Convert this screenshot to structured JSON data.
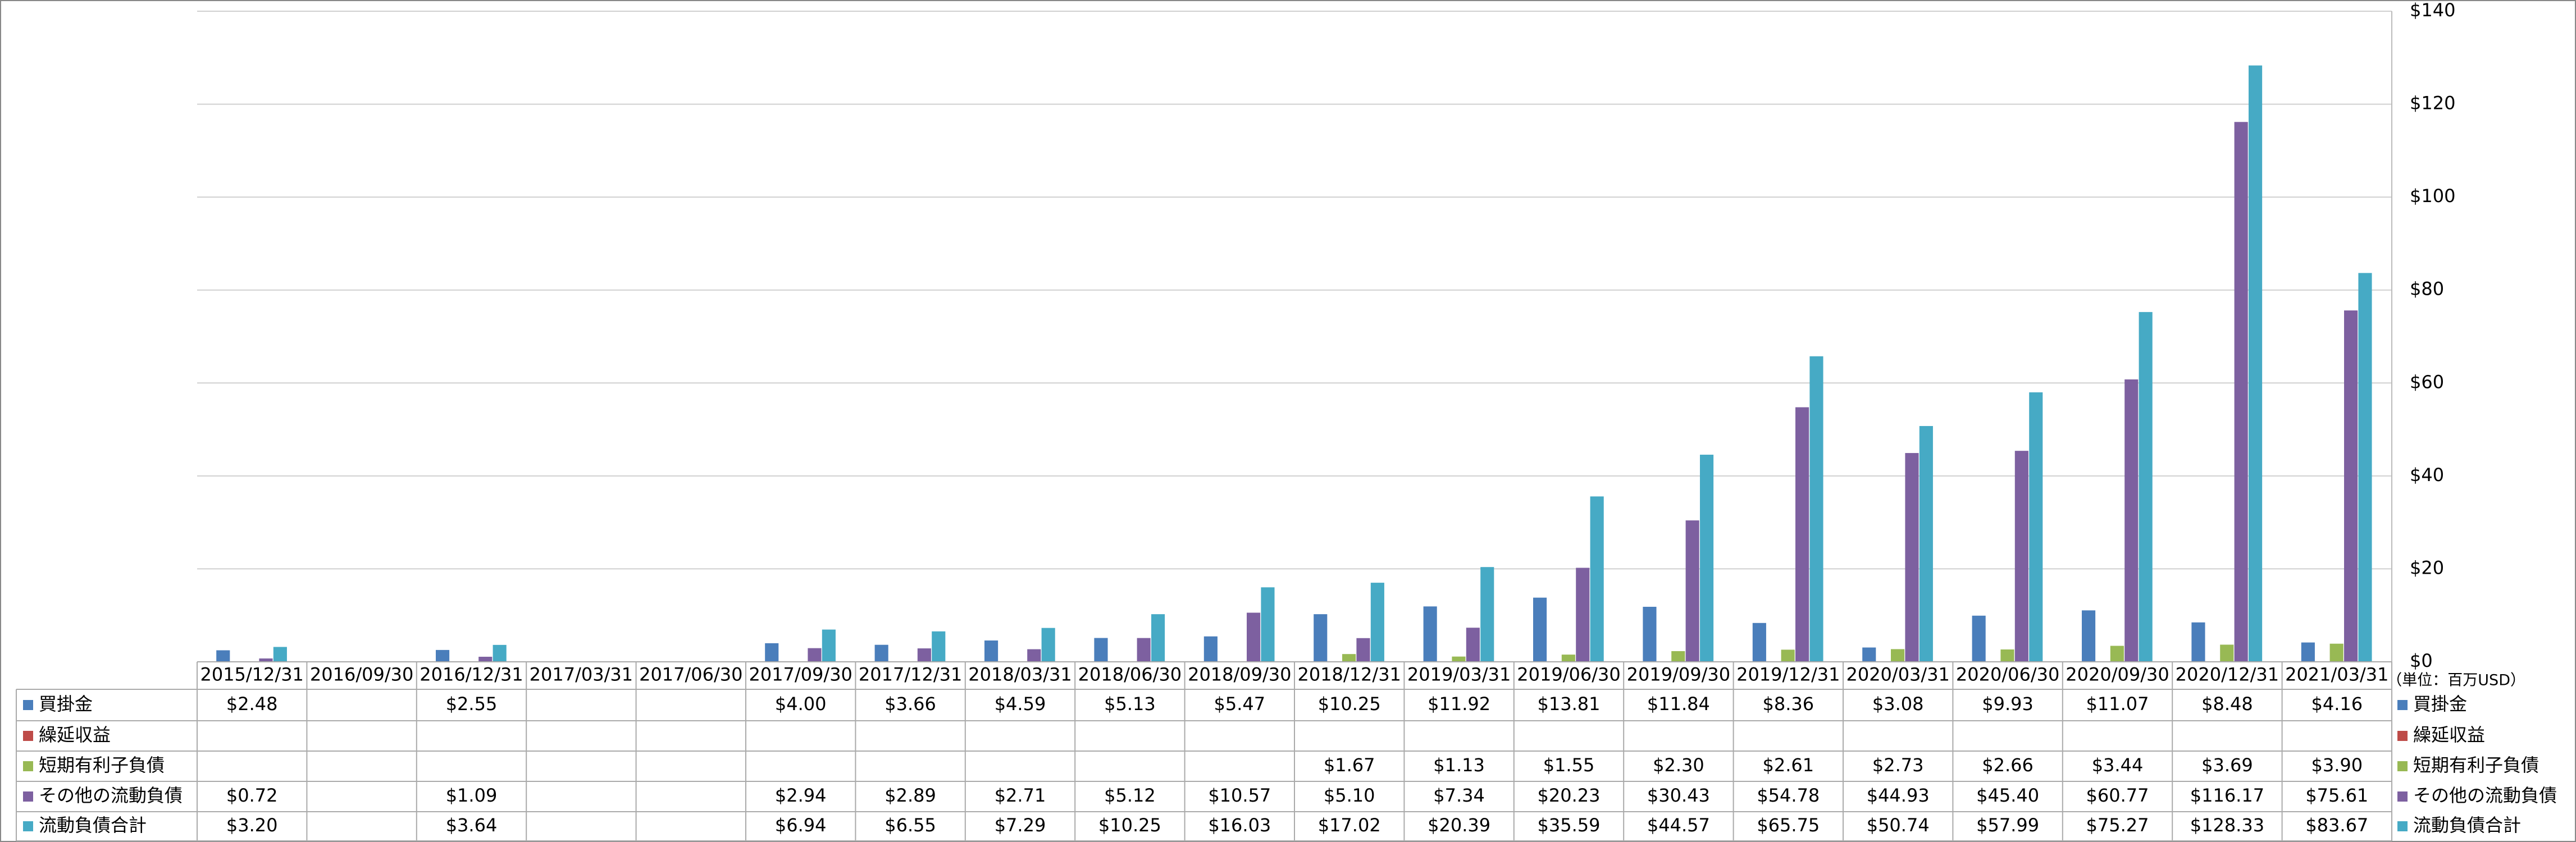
{
  "chart_data": {
    "type": "bar",
    "categories": [
      "2015/12/31",
      "2016/09/30",
      "2016/12/31",
      "2017/03/31",
      "2017/06/30",
      "2017/09/30",
      "2017/12/31",
      "2018/03/31",
      "2018/06/30",
      "2018/09/30",
      "2018/12/31",
      "2019/03/31",
      "2019/06/30",
      "2019/09/30",
      "2019/12/31",
      "2020/03/31",
      "2020/06/30",
      "2020/09/30",
      "2020/12/31",
      "2021/03/31"
    ],
    "series": [
      {
        "name": "買掛金",
        "color": "#4a7ebb",
        "values": [
          2.48,
          null,
          2.55,
          null,
          null,
          4.0,
          3.66,
          4.59,
          5.13,
          5.47,
          10.25,
          11.92,
          13.81,
          11.84,
          8.36,
          3.08,
          9.93,
          11.07,
          8.48,
          4.16
        ],
        "value_labels": [
          "$2.48",
          null,
          "$2.55",
          null,
          null,
          "$4.00",
          "$3.66",
          "$4.59",
          "$5.13",
          "$5.47",
          "$10.25",
          "$11.92",
          "$13.81",
          "$11.84",
          "$8.36",
          "$3.08",
          "$9.93",
          "$11.07",
          "$8.48",
          "$4.16"
        ]
      },
      {
        "name": "繰延収益",
        "color": "#be4b48",
        "values": [
          null,
          null,
          null,
          null,
          null,
          null,
          null,
          null,
          null,
          null,
          null,
          null,
          null,
          null,
          null,
          null,
          null,
          null,
          null,
          null
        ],
        "value_labels": [
          null,
          null,
          null,
          null,
          null,
          null,
          null,
          null,
          null,
          null,
          null,
          null,
          null,
          null,
          null,
          null,
          null,
          null,
          null,
          null
        ]
      },
      {
        "name": "短期有利子負債",
        "color": "#98b954",
        "values": [
          null,
          null,
          null,
          null,
          null,
          null,
          null,
          null,
          null,
          null,
          1.67,
          1.13,
          1.55,
          2.3,
          2.61,
          2.73,
          2.66,
          3.44,
          3.69,
          3.9
        ],
        "value_labels": [
          null,
          null,
          null,
          null,
          null,
          null,
          null,
          null,
          null,
          null,
          "$1.67",
          "$1.13",
          "$1.55",
          "$2.30",
          "$2.61",
          "$2.73",
          "$2.66",
          "$3.44",
          "$3.69",
          "$3.90"
        ]
      },
      {
        "name": "その他の流動負債",
        "color": "#7d60a0",
        "values": [
          0.72,
          null,
          1.09,
          null,
          null,
          2.94,
          2.89,
          2.71,
          5.12,
          10.57,
          5.1,
          7.34,
          20.23,
          30.43,
          54.78,
          44.93,
          45.4,
          60.77,
          116.17,
          75.61
        ],
        "value_labels": [
          "$0.72",
          null,
          "$1.09",
          null,
          null,
          "$2.94",
          "$2.89",
          "$2.71",
          "$5.12",
          "$10.57",
          "$5.10",
          "$7.34",
          "$20.23",
          "$30.43",
          "$54.78",
          "$44.93",
          "$45.40",
          "$60.77",
          "$116.17",
          "$75.61"
        ]
      },
      {
        "name": "流動負債合計",
        "color": "#46aac5",
        "values": [
          3.2,
          null,
          3.64,
          null,
          null,
          6.94,
          6.55,
          7.29,
          10.25,
          16.03,
          17.02,
          20.39,
          35.59,
          44.57,
          65.75,
          50.74,
          57.99,
          75.27,
          128.33,
          83.67
        ],
        "value_labels": [
          "$3.20",
          null,
          "$3.64",
          null,
          null,
          "$6.94",
          "$6.55",
          "$7.29",
          "$10.25",
          "$16.03",
          "$17.02",
          "$20.39",
          "$35.59",
          "$44.57",
          "$65.75",
          "$50.74",
          "$57.99",
          "$75.27",
          "$128.33",
          "$83.67"
        ]
      }
    ],
    "ylim": [
      0,
      140
    ],
    "yticks": [
      {
        "value": 0,
        "label": "$0"
      },
      {
        "value": 20,
        "label": "$20"
      },
      {
        "value": 40,
        "label": "$40"
      },
      {
        "value": 60,
        "label": "$60"
      },
      {
        "value": 80,
        "label": "$80"
      },
      {
        "value": 100,
        "label": "$100"
      },
      {
        "value": 120,
        "label": "$120"
      },
      {
        "value": 140,
        "label": "$140"
      }
    ],
    "grid": true,
    "unit_note": "（単位：百万USD）"
  }
}
